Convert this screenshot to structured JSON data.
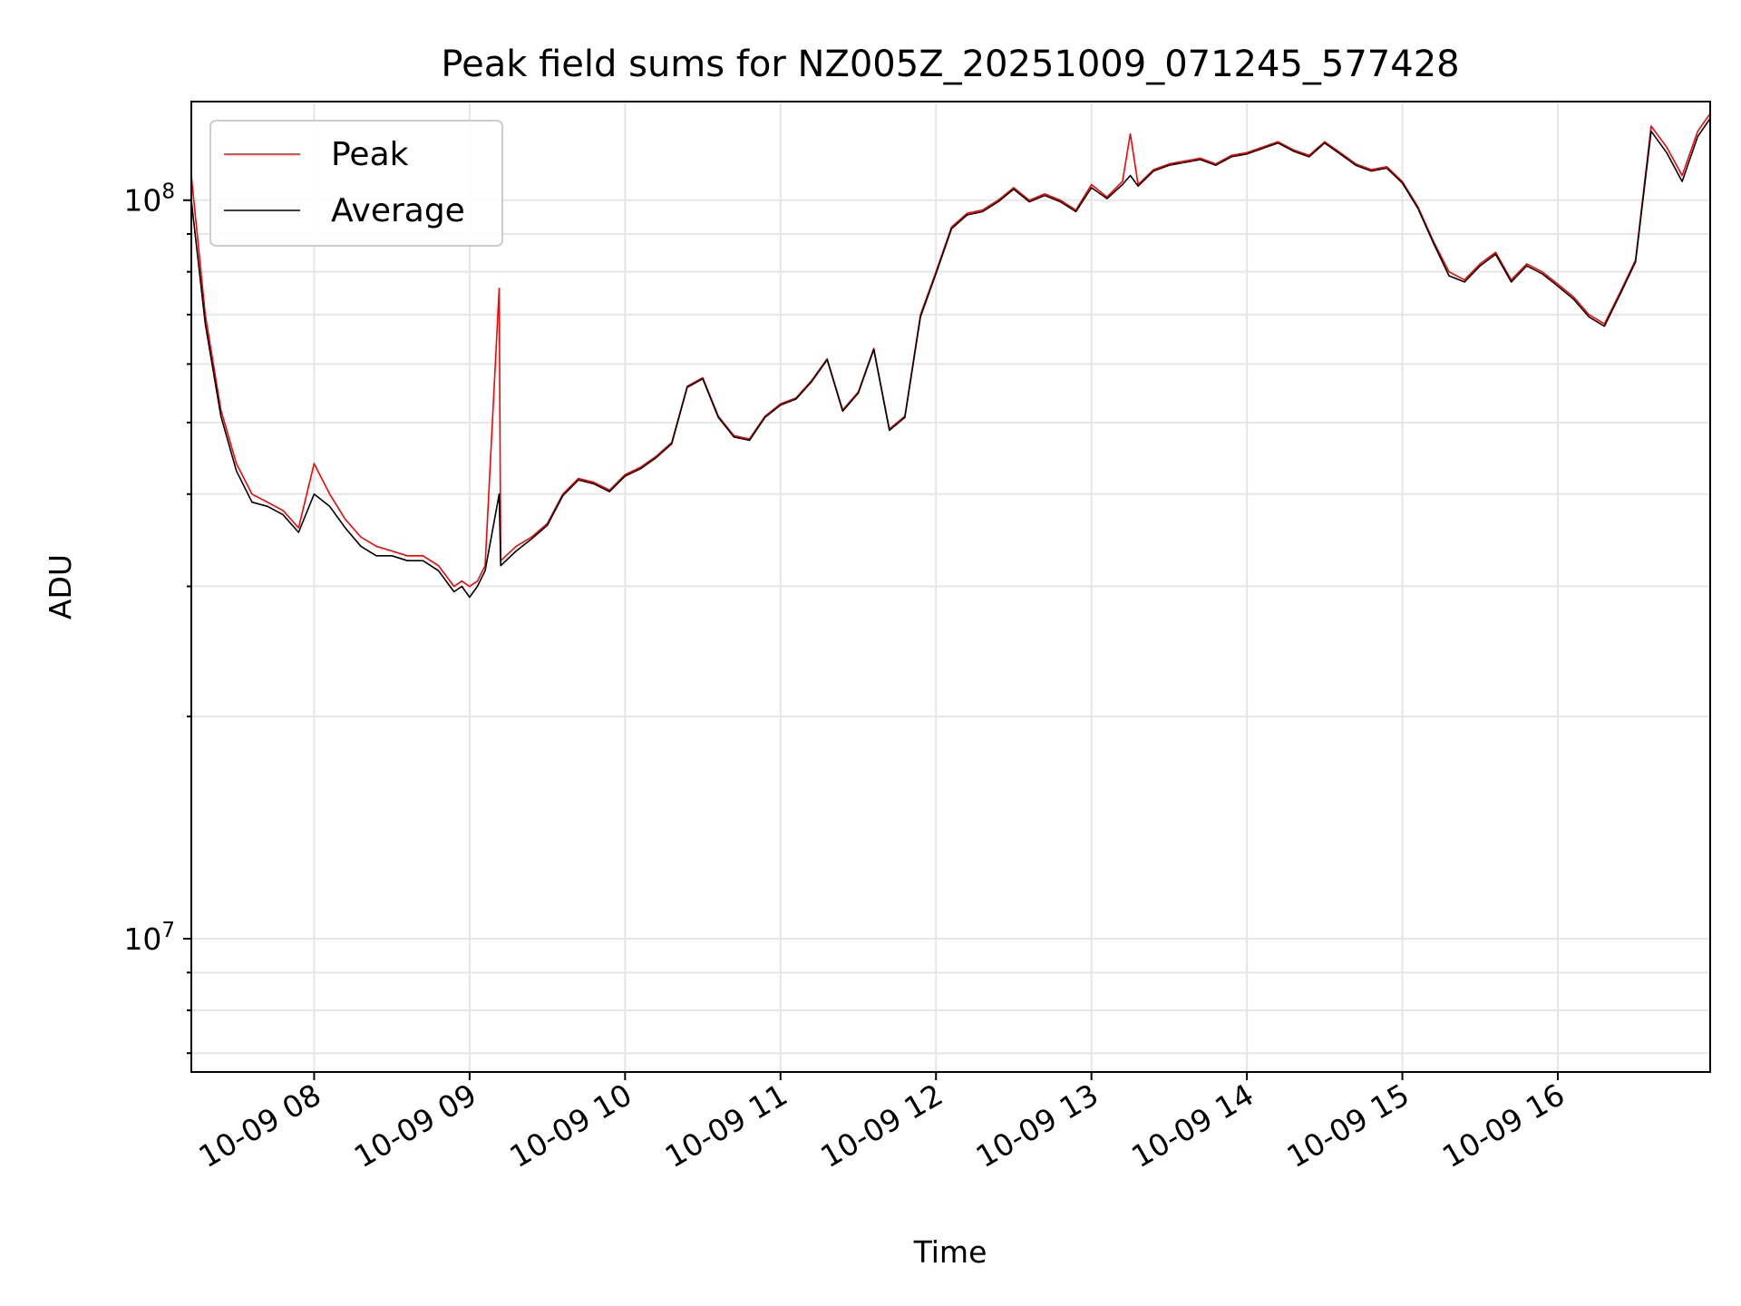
{
  "chart_data": {
    "type": "line",
    "title": "Peak field sums for NZ005Z_20251009_071245_577428",
    "xlabel": "Time",
    "ylabel": "ADU",
    "yscale": "log",
    "ylim": [
      6600000,
      136000000
    ],
    "x_unit": "hour of 2025-10-09",
    "xlim": [
      7.21,
      16.98
    ],
    "grid": "major-and-minor",
    "legend_position": "upper-left",
    "x_ticks": [
      {
        "value": 8,
        "label": "10-09 08"
      },
      {
        "value": 9,
        "label": "10-09 09"
      },
      {
        "value": 10,
        "label": "10-09 10"
      },
      {
        "value": 11,
        "label": "10-09 11"
      },
      {
        "value": 12,
        "label": "10-09 12"
      },
      {
        "value": 13,
        "label": "10-09 13"
      },
      {
        "value": 14,
        "label": "10-09 14"
      },
      {
        "value": 15,
        "label": "10-09 15"
      },
      {
        "value": 16,
        "label": "10-09 16"
      }
    ],
    "y_ticks": [
      {
        "value": 10000000,
        "base": "10",
        "exp": "7"
      },
      {
        "value": 100000000,
        "base": "10",
        "exp": "8"
      }
    ],
    "series": [
      {
        "name": "Peak",
        "color": "#ff0000",
        "x": [
          7.21,
          7.3,
          7.4,
          7.5,
          7.6,
          7.7,
          7.8,
          7.9,
          8.0,
          8.1,
          8.2,
          8.3,
          8.4,
          8.5,
          8.6,
          8.7,
          8.8,
          8.9,
          8.95,
          9.0,
          9.05,
          9.1,
          9.19,
          9.2,
          9.3,
          9.4,
          9.5,
          9.6,
          9.7,
          9.8,
          9.9,
          10.0,
          10.1,
          10.2,
          10.3,
          10.4,
          10.5,
          10.6,
          10.7,
          10.8,
          10.9,
          11.0,
          11.1,
          11.2,
          11.3,
          11.4,
          11.5,
          11.6,
          11.7,
          11.8,
          11.9,
          12.0,
          12.1,
          12.2,
          12.3,
          12.4,
          12.5,
          12.6,
          12.7,
          12.8,
          12.9,
          13.0,
          13.1,
          13.2,
          13.25,
          13.3,
          13.4,
          13.5,
          13.6,
          13.7,
          13.8,
          13.9,
          14.0,
          14.1,
          14.2,
          14.3,
          14.4,
          14.5,
          14.6,
          14.7,
          14.8,
          14.9,
          15.0,
          15.1,
          15.2,
          15.3,
          15.4,
          15.5,
          15.6,
          15.7,
          15.8,
          15.9,
          16.0,
          16.1,
          16.2,
          16.3,
          16.4,
          16.5,
          16.6,
          16.7,
          16.8,
          16.9,
          16.98
        ],
        "y": [
          108000000,
          70000000,
          52000000,
          44000000,
          40000000,
          39000000,
          38000000,
          36000000,
          44000000,
          40000000,
          37000000,
          35000000,
          34000000,
          33500000,
          33000000,
          33000000,
          32000000,
          30000000,
          30500000,
          30000000,
          30500000,
          32000000,
          76000000,
          32500000,
          34000000,
          35000000,
          36500000,
          40000000,
          42000000,
          41500000,
          40500000,
          42500000,
          43500000,
          45000000,
          47000000,
          56000000,
          57500000,
          51000000,
          48000000,
          47500000,
          51000000,
          53000000,
          54000000,
          57000000,
          61000000,
          52000000,
          55000000,
          63000000,
          49000000,
          51000000,
          70000000,
          80000000,
          92000000,
          96000000,
          97000000,
          100000000,
          104000000,
          100000000,
          102000000,
          100000000,
          97000000,
          105000000,
          101000000,
          106000000,
          123000000,
          105000000,
          110000000,
          112000000,
          113000000,
          114000000,
          112000000,
          115000000,
          116000000,
          118000000,
          120000000,
          117000000,
          115000000,
          120000000,
          116000000,
          112000000,
          110000000,
          111000000,
          106000000,
          98000000,
          88000000,
          80000000,
          78000000,
          82000000,
          85000000,
          78000000,
          82000000,
          80000000,
          77000000,
          74000000,
          70000000,
          68000000,
          75000000,
          83000000,
          126000000,
          118000000,
          108000000,
          124000000,
          131000000
        ]
      },
      {
        "name": "Average",
        "color": "#000000",
        "x": [
          7.21,
          7.3,
          7.4,
          7.5,
          7.6,
          7.7,
          7.8,
          7.9,
          8.0,
          8.1,
          8.2,
          8.3,
          8.4,
          8.5,
          8.6,
          8.7,
          8.8,
          8.9,
          8.95,
          9.0,
          9.05,
          9.1,
          9.19,
          9.2,
          9.3,
          9.4,
          9.5,
          9.6,
          9.7,
          9.8,
          9.9,
          10.0,
          10.1,
          10.2,
          10.3,
          10.4,
          10.5,
          10.6,
          10.7,
          10.8,
          10.9,
          11.0,
          11.1,
          11.2,
          11.3,
          11.4,
          11.5,
          11.6,
          11.7,
          11.8,
          11.9,
          12.0,
          12.1,
          12.2,
          12.3,
          12.4,
          12.5,
          12.6,
          12.7,
          12.8,
          12.9,
          13.0,
          13.1,
          13.2,
          13.25,
          13.3,
          13.4,
          13.5,
          13.6,
          13.7,
          13.8,
          13.9,
          14.0,
          14.1,
          14.2,
          14.3,
          14.4,
          14.5,
          14.6,
          14.7,
          14.8,
          14.9,
          15.0,
          15.1,
          15.2,
          15.3,
          15.4,
          15.5,
          15.6,
          15.7,
          15.8,
          15.9,
          16.0,
          16.1,
          16.2,
          16.3,
          16.4,
          16.5,
          16.6,
          16.7,
          16.8,
          16.9,
          16.98
        ],
        "y": [
          100000000,
          68000000,
          51000000,
          43000000,
          39000000,
          38500000,
          37500000,
          35500000,
          40000000,
          38500000,
          36000000,
          34000000,
          33000000,
          33000000,
          32500000,
          32500000,
          31500000,
          29500000,
          30000000,
          29000000,
          30000000,
          31500000,
          40000000,
          32000000,
          33500000,
          34800000,
          36300000,
          39800000,
          41800000,
          41300000,
          40300000,
          42300000,
          43300000,
          44800000,
          46800000,
          55800000,
          57300000,
          50800000,
          47800000,
          47300000,
          50800000,
          52800000,
          53800000,
          56800000,
          60800000,
          51800000,
          54800000,
          62800000,
          48800000,
          50800000,
          69500000,
          79500000,
          91500000,
          95500000,
          96500000,
          99500000,
          103500000,
          99500000,
          101500000,
          99500000,
          96500000,
          104000000,
          100500000,
          105000000,
          108000000,
          104500000,
          109500000,
          111500000,
          112500000,
          113500000,
          111500000,
          114500000,
          115500000,
          117500000,
          119500000,
          116500000,
          114500000,
          119500000,
          115500000,
          111500000,
          109500000,
          110500000,
          105500000,
          97500000,
          87500000,
          79000000,
          77500000,
          81500000,
          84500000,
          77500000,
          81500000,
          79500000,
          76500000,
          73500000,
          69500000,
          67500000,
          74500000,
          82500000,
          124000000,
          116000000,
          106000000,
          122000000,
          129000000
        ]
      }
    ]
  }
}
